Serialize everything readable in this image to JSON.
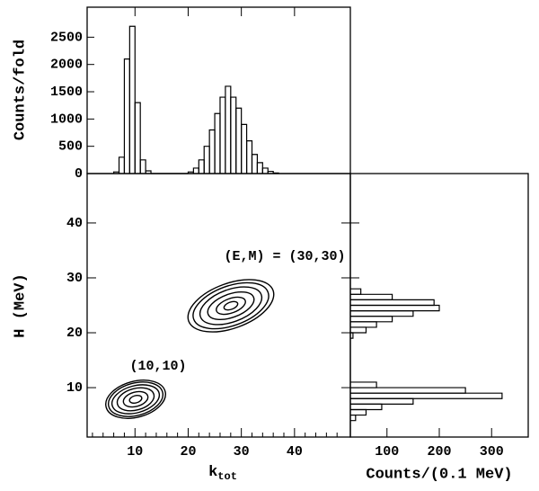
{
  "chart_data": [
    {
      "type": "histogram",
      "ylabel": "Counts/fold",
      "bins": [
        6,
        7,
        8,
        9,
        10,
        11,
        12,
        13,
        14,
        15,
        16,
        17,
        18,
        19,
        20,
        21,
        22,
        23,
        24,
        25,
        26,
        27,
        28,
        29,
        30,
        31,
        32,
        33,
        34,
        35,
        36,
        37
      ],
      "values": [
        30,
        300,
        2100,
        2700,
        1300,
        250,
        50,
        0,
        0,
        0,
        0,
        0,
        0,
        0,
        30,
        100,
        250,
        500,
        800,
        1100,
        1400,
        1600,
        1400,
        1200,
        900,
        600,
        350,
        200,
        100,
        40,
        10
      ],
      "xlim": [
        1,
        50.5
      ],
      "ylim": [
        0,
        3050
      ],
      "yticks": [
        0,
        500,
        1000,
        1500,
        2000,
        2500
      ],
      "color": "#000000"
    },
    {
      "type": "contour",
      "xlabel": [
        "k",
        "tot"
      ],
      "ylabel": "H (MeV)",
      "annotations": [
        "(E,M) = (30,30)",
        "(10,10)"
      ],
      "xlim": [
        1,
        50.5
      ],
      "ylim": [
        1,
        49
      ],
      "xticks": [
        10,
        20,
        30,
        40
      ],
      "yticks": [
        10,
        20,
        30,
        40
      ],
      "color": "#000000"
    },
    {
      "type": "hbar_histogram",
      "xlabel": "Counts/(0.1 MeV)",
      "bins": [
        3,
        4,
        5,
        6,
        7,
        8,
        9,
        10,
        11,
        12,
        13,
        14,
        15,
        16,
        17,
        18,
        19,
        20,
        21,
        22,
        23,
        24,
        25,
        26,
        27,
        28,
        29,
        30,
        31
      ],
      "values": [
        5,
        40,
        60,
        90,
        150,
        320,
        250,
        80,
        20,
        5,
        2,
        2,
        3,
        5,
        10,
        20,
        35,
        60,
        80,
        110,
        150,
        200,
        190,
        110,
        50,
        20,
        8,
        3
      ],
      "xlim": [
        30,
        370
      ],
      "ylim": [
        1,
        49
      ],
      "xticks": [
        100,
        200,
        300
      ],
      "color": "#000000"
    }
  ]
}
